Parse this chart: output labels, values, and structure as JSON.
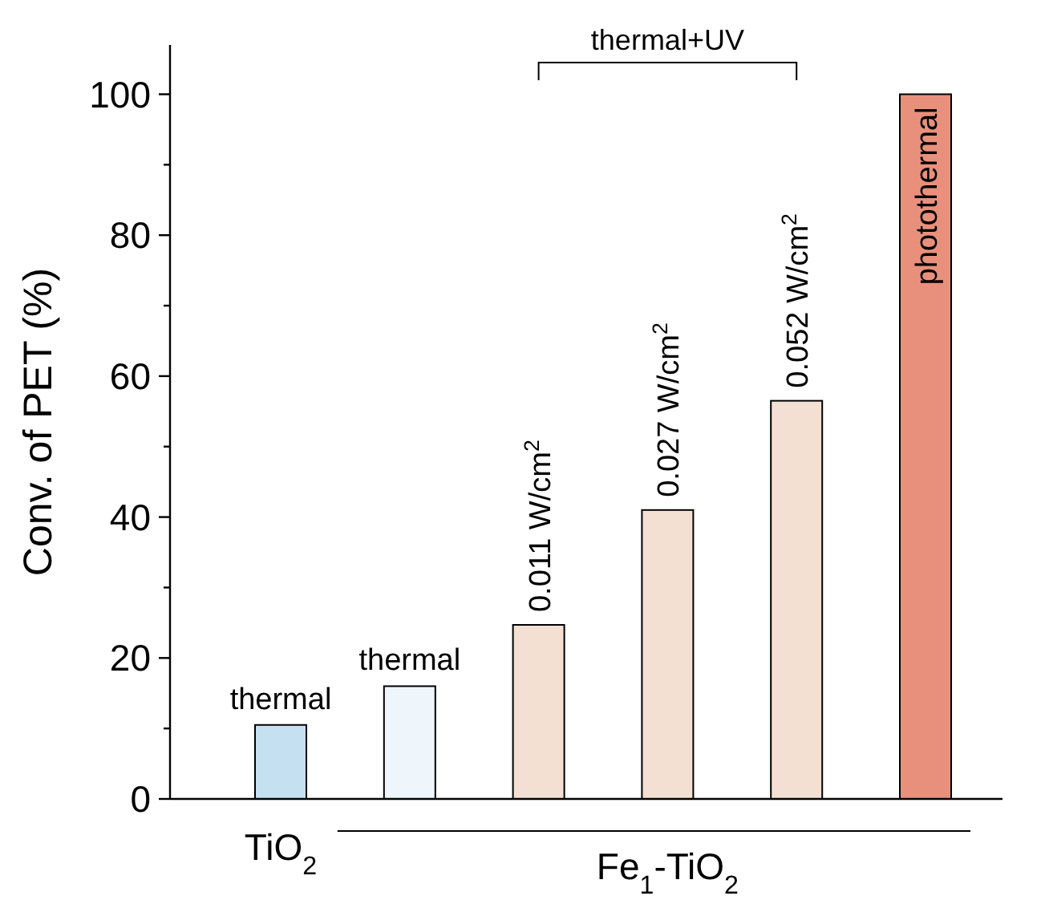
{
  "chart_data": {
    "type": "bar",
    "ylabel": "Conv. of PET (%)",
    "categories": [
      null,
      null,
      null,
      null,
      null,
      null
    ],
    "values": [
      10.5,
      16,
      24.7,
      41,
      56.5,
      100
    ],
    "colors": [
      "#c5e0f0",
      "#eef6fb",
      "#f3e0d2",
      "#f3e0d2",
      "#f3e0d2",
      "#e8907c"
    ],
    "ylim": [
      0,
      107
    ],
    "yticks": [
      0,
      {
        "value": 10,
        "label": null
      },
      20,
      {
        "value": 30,
        "label": null
      },
      40,
      {
        "value": 50,
        "label": null
      },
      60,
      {
        "value": 70,
        "label": null
      },
      80,
      {
        "value": 90,
        "label": null
      },
      100
    ],
    "annotations": [
      {
        "text": "thermal",
        "y": 10.5
      },
      {
        "text": "thermal",
        "y": 16
      },
      {
        "text": "0.011 W/cm$^{2}$",
        "y": 24.7
      },
      {
        "text": "0.027 W/cm$^{2}$",
        "y": 41
      },
      {
        "text": "0.052 W/cm$^{2}$",
        "y": 56.5
      },
      {
        "text": "photothermal",
        "y": 100
      },
      "TiO$_{2}$",
      "Fe$_{1}$-TiO$_{2}$",
      "thermal+UV"
    ],
    "grid": false
  }
}
